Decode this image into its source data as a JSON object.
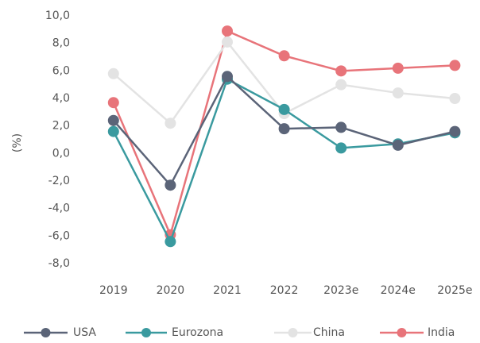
{
  "chart_data": {
    "type": "line",
    "y_label": "(%)",
    "categories": [
      "2019",
      "2020",
      "2021",
      "2022",
      "2023e",
      "2024e",
      "2025e"
    ],
    "series": [
      {
        "name": "USA",
        "color": "#5b6478",
        "values": [
          2.4,
          -2.3,
          5.6,
          1.8,
          1.9,
          0.6,
          1.6
        ]
      },
      {
        "name": "Eurozona",
        "color": "#3a9a9f",
        "values": [
          1.6,
          -6.4,
          5.4,
          3.2,
          0.4,
          0.7,
          1.5
        ]
      },
      {
        "name": "China",
        "color": "#e3e3e3",
        "values": [
          5.8,
          2.2,
          8.1,
          2.9,
          5.0,
          4.4,
          4.0
        ]
      },
      {
        "name": "India",
        "color": "#e8747a",
        "values": [
          3.7,
          -5.9,
          8.9,
          7.1,
          6.0,
          6.2,
          6.4
        ]
      }
    ],
    "ylim": [
      -8,
      10
    ],
    "yticks": [
      {
        "value": 10,
        "label": "10,0"
      },
      {
        "value": 8,
        "label": "8,0"
      },
      {
        "value": 6,
        "label": "6,0"
      },
      {
        "value": 4,
        "label": "4,0"
      },
      {
        "value": 2,
        "label": "2,0"
      },
      {
        "value": 0,
        "label": "0,0"
      },
      {
        "value": -2,
        "label": "-2,0"
      },
      {
        "value": -4,
        "label": "-4,0"
      },
      {
        "value": -6,
        "label": "-6,0"
      },
      {
        "value": -8,
        "label": "-8,0"
      }
    ],
    "grid": false,
    "legend": "bottom"
  }
}
